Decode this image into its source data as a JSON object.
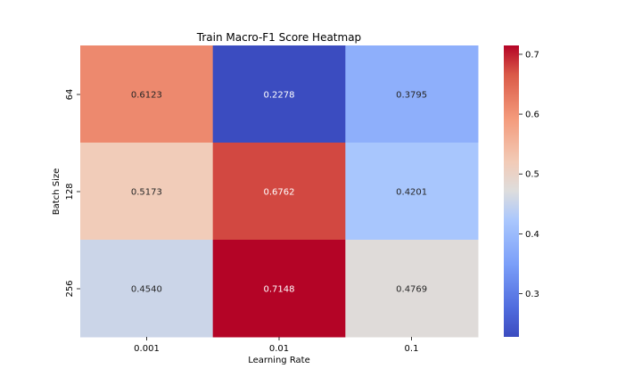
{
  "chart_data": {
    "type": "heatmap",
    "title": "Train Macro-F1 Score Heatmap",
    "xlabel": "Learning Rate",
    "ylabel": "Batch Size",
    "x_categories": [
      "0.001",
      "0.01",
      "0.1"
    ],
    "y_categories": [
      "64",
      "128",
      "256"
    ],
    "values": [
      [
        0.6123,
        0.2278,
        0.3795
      ],
      [
        0.5173,
        0.6762,
        0.4201
      ],
      [
        0.454,
        0.7148,
        0.4769
      ]
    ],
    "cell_labels": [
      [
        "0.6123",
        "0.2278",
        "0.3795"
      ],
      [
        "0.5173",
        "0.6762",
        "0.4201"
      ],
      [
        "0.4540",
        "0.7148",
        "0.4769"
      ]
    ],
    "colormap": "coolwarm",
    "vmin": 0.2278,
    "vmax": 0.7148,
    "colorbar_ticks": [
      0.3,
      0.4,
      0.5,
      0.6,
      0.7
    ],
    "colorbar_tick_labels": [
      "0.3",
      "0.4",
      "0.5",
      "0.6",
      "0.7"
    ],
    "colors": {
      "coolwarm_low": "#3b4cc0",
      "coolwarm_mid": "#dddddd",
      "coolwarm_high": "#b40426",
      "text_dark": "#262626",
      "text_light": "#ffffff"
    }
  }
}
